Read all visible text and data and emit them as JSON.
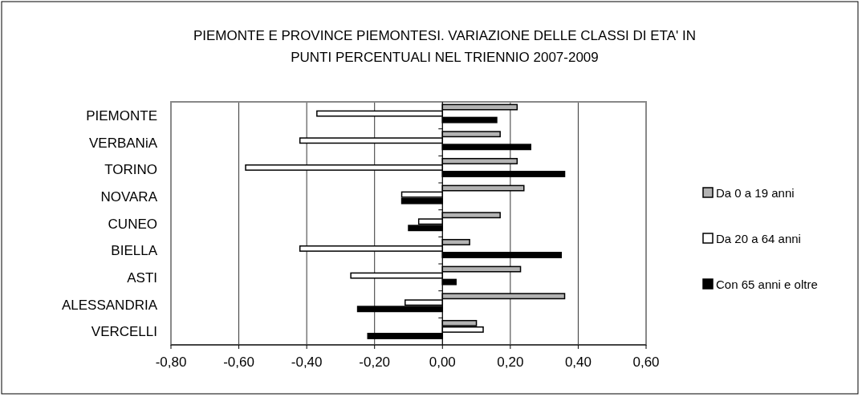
{
  "chart_data": {
    "type": "bar",
    "orientation": "horizontal",
    "title": "PIEMONTE E PROVINCE PIEMONTESI.  VARIAZIONE DELLE CLASSI DI ETA' IN PUNTI PERCENTUALI NEL TRIENNIO 2007-2009",
    "categories": [
      "PIEMONTE",
      "VERBANiA",
      "TORINO",
      "NOVARA",
      "CUNEO",
      "BIELLA",
      "ASTI",
      "ALESSANDRIA",
      "VERCELLI"
    ],
    "series": [
      {
        "name": "Da 0 a 19 anni",
        "color": "#b3b3b3",
        "values": [
          0.22,
          0.17,
          0.22,
          0.24,
          0.17,
          0.08,
          0.23,
          0.36,
          0.1
        ]
      },
      {
        "name": "Da 20 a 64 anni",
        "color": "#ffffff",
        "values": [
          -0.37,
          -0.42,
          -0.58,
          -0.12,
          -0.07,
          -0.42,
          -0.27,
          -0.11,
          0.12
        ]
      },
      {
        "name": "Con 65 anni e oltre",
        "color": "#000000",
        "values": [
          0.16,
          0.26,
          0.36,
          -0.12,
          -0.1,
          0.35,
          0.04,
          -0.25,
          -0.22
        ]
      }
    ],
    "xlim": [
      -0.8,
      0.6
    ],
    "xticks": [
      {
        "value": -0.8,
        "label": "-0,80"
      },
      {
        "value": -0.6,
        "label": "-0,60"
      },
      {
        "value": -0.4,
        "label": "-0,40"
      },
      {
        "value": -0.2,
        "label": "-0,20"
      },
      {
        "value": 0,
        "label": "0,00"
      },
      {
        "value": 0.2,
        "label": "0,20"
      },
      {
        "value": 0.4,
        "label": "0,40"
      },
      {
        "value": 0.6,
        "label": "0,60"
      }
    ],
    "grid": "x",
    "legend": "right"
  }
}
